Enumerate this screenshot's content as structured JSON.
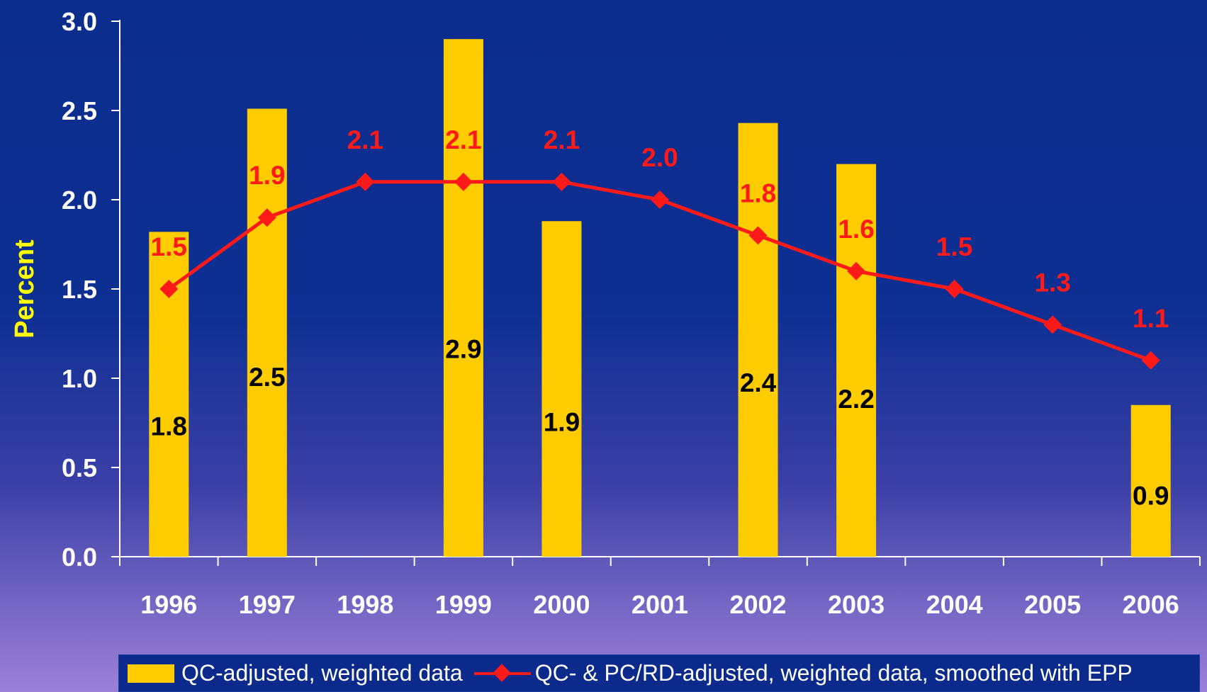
{
  "chart_data": {
    "type": "bar",
    "categories": [
      "1996",
      "1997",
      "1998",
      "1999",
      "2000",
      "2001",
      "2002",
      "2003",
      "2004",
      "2005",
      "2006"
    ],
    "series": [
      {
        "name": "QC-adjusted, weighted data",
        "type": "bar",
        "color": "#ffcc00",
        "values": [
          1.82,
          2.51,
          null,
          2.9,
          1.88,
          null,
          2.43,
          2.2,
          null,
          null,
          0.85
        ],
        "labels": [
          "1.8",
          "2.5",
          "",
          "2.9",
          "1.9",
          "",
          "2.4",
          "2.2",
          "",
          "",
          "0.9"
        ]
      },
      {
        "name": "QC- & PC/RD-adjusted, weighted data, smoothed with EPP",
        "type": "line",
        "color": "#ff1a1a",
        "values": [
          1.5,
          1.9,
          2.1,
          2.1,
          2.1,
          2.0,
          1.8,
          1.6,
          1.5,
          1.3,
          1.1
        ],
        "labels": [
          "1.5",
          "1.9",
          "2.1",
          "2.1",
          "2.1",
          "2.0",
          "1.8",
          "1.6",
          "1.5",
          "1.3",
          "1.1"
        ]
      }
    ],
    "ylabel": "Percent",
    "ylim": [
      0,
      3.0
    ],
    "yticks": [
      "0.0",
      "0.5",
      "1.0",
      "1.5",
      "2.0",
      "2.5",
      "3.0"
    ],
    "grid": false,
    "legend_position": "bottom"
  }
}
